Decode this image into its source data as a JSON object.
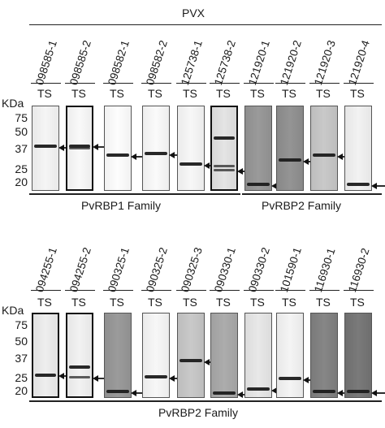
{
  "header": {
    "title": "PVX"
  },
  "panel_top": {
    "kda_label": "KDa",
    "markers": [
      "75",
      "50",
      "37",
      "25",
      "20"
    ],
    "ts_label": "TS",
    "samples": [
      {
        "id": "098585-1",
        "band_kda": [
          39
        ],
        "bg": "#e9e9e9",
        "frame": false
      },
      {
        "id": "098585-2",
        "band_kda": [
          40,
          38
        ],
        "bg": "#ededed",
        "frame": true
      },
      {
        "id": "098582-1",
        "band_kda": [
          33
        ],
        "bg": "#f1f1f1",
        "frame": false
      },
      {
        "id": "098582-2",
        "band_kda": [
          34
        ],
        "bg": "#eeeeee",
        "frame": false
      },
      {
        "id": "125738-1",
        "band_kda": [
          28
        ],
        "bg": "#ebebeb",
        "frame": false
      },
      {
        "id": "125738-2",
        "band_kda": [
          46,
          27,
          25
        ],
        "bg": "#d8d8d8",
        "frame": true
      },
      {
        "id": "121920-1",
        "band_kda": [
          19
        ],
        "bg": "#8e8e8e",
        "frame": false
      },
      {
        "id": "121920-2",
        "band_kda": [
          30
        ],
        "bg": "#888888",
        "frame": false
      },
      {
        "id": "121920-3",
        "band_kda": [
          33
        ],
        "bg": "#bdbdbd",
        "frame": false
      },
      {
        "id": "121920-4",
        "band_kda": [
          19
        ],
        "bg": "#e6e6e6",
        "frame": false
      }
    ],
    "families": [
      {
        "label": "PvRBP1 Family"
      },
      {
        "label": "PvRBP2 Family"
      }
    ]
  },
  "panel_bottom": {
    "kda_label": "KDa",
    "markers": [
      "75",
      "50",
      "37",
      "25",
      "20"
    ],
    "ts_label": "TS",
    "samples": [
      {
        "id": "094255-1",
        "band_kda": [
          27
        ],
        "bg": "#e2e2e2",
        "frame": true
      },
      {
        "id": "094255-2",
        "band_kda": [
          32,
          26
        ],
        "bg": "#e6e6e6",
        "frame": true
      },
      {
        "id": "090325-1",
        "band_kda": [
          20
        ],
        "bg": "#8f8f8f",
        "frame": false
      },
      {
        "id": "090325-2",
        "band_kda": [
          26
        ],
        "bg": "#ebebeb",
        "frame": false
      },
      {
        "id": "090325-3",
        "band_kda": [
          36
        ],
        "bg": "#bdbdbd",
        "frame": false
      },
      {
        "id": "090330-1",
        "band_kda": [
          19
        ],
        "bg": "#a0a0a0",
        "frame": false
      },
      {
        "id": "090330-2",
        "band_kda": [
          21
        ],
        "bg": "#dcdcdc",
        "frame": false
      },
      {
        "id": "101590-1",
        "band_kda": [
          25
        ],
        "bg": "#e8e8e8",
        "frame": false
      },
      {
        "id": "116930-1",
        "band_kda": [
          20
        ],
        "bg": "#7a7a7a",
        "frame": false
      },
      {
        "id": "116930-2",
        "band_kda": [
          20
        ],
        "bg": "#6e6e6e",
        "frame": false
      }
    ],
    "families": [
      {
        "label": "PvRBP2 Family"
      }
    ]
  }
}
